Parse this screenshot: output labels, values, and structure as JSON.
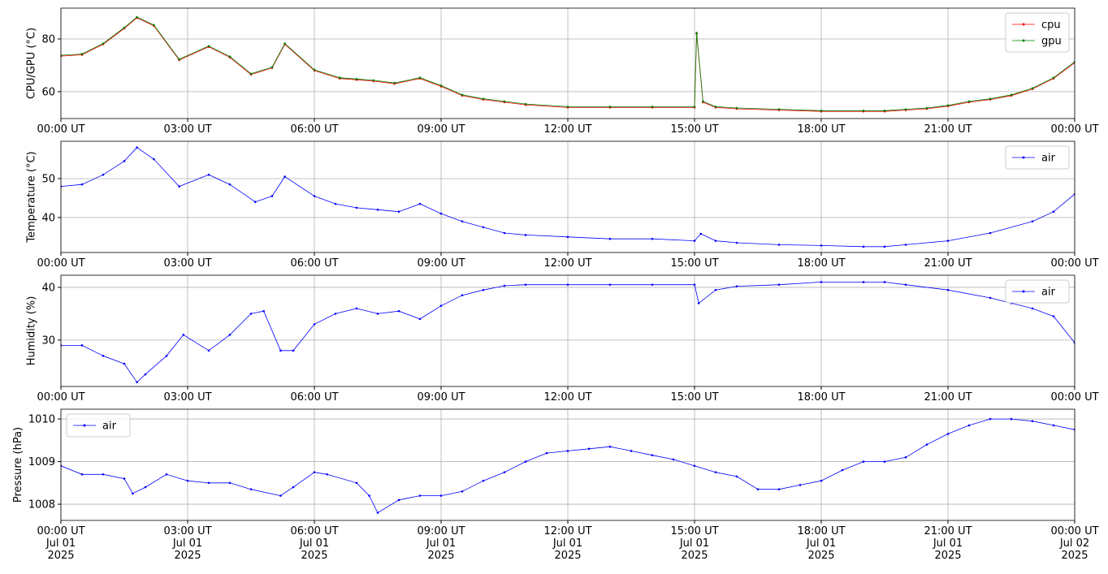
{
  "chart_data": [
    {
      "type": "line",
      "ylabel": "CPU/GPU (°C)",
      "legend": "upper right",
      "grid": true,
      "xlim": [
        0,
        24
      ],
      "ylim": [
        49.8,
        91.7
      ],
      "xticks": [
        {
          "value": 0,
          "label": "00:00 UT"
        },
        {
          "value": 3,
          "label": "03:00 UT"
        },
        {
          "value": 6,
          "label": "06:00 UT"
        },
        {
          "value": 9,
          "label": "09:00 UT"
        },
        {
          "value": 12,
          "label": "12:00 UT"
        },
        {
          "value": 15,
          "label": "15:00 UT"
        },
        {
          "value": 18,
          "label": "18:00 UT"
        },
        {
          "value": 21,
          "label": "21:00 UT"
        },
        {
          "value": 24,
          "label": "00:00 UT"
        }
      ],
      "yticks": [
        60,
        80
      ],
      "x": [
        0,
        0.5,
        1,
        1.5,
        1.8,
        2.2,
        2.8,
        3.5,
        4,
        4.5,
        5,
        5.3,
        6,
        6.6,
        7,
        7.4,
        7.9,
        8.5,
        9,
        9.5,
        10,
        10.5,
        11,
        12,
        13,
        14,
        15,
        15.05,
        15.2,
        15.5,
        16,
        17,
        18,
        19,
        19.5,
        20,
        20.5,
        21,
        21.5,
        22,
        22.5,
        23,
        23.5,
        24
      ],
      "series": [
        {
          "name": "cpu",
          "color": "#ff0000",
          "values": [
            73.5,
            74,
            78,
            84,
            88,
            85,
            72,
            77,
            73,
            66.5,
            69,
            78,
            68,
            65,
            64.5,
            64,
            63,
            65,
            62,
            58.5,
            57,
            56,
            55,
            54,
            54,
            54,
            54,
            82,
            56,
            54,
            53.5,
            53,
            52.5,
            52.5,
            52.5,
            53,
            53.5,
            54.5,
            56,
            57,
            58.5,
            61,
            65,
            71
          ]
        },
        {
          "name": "gpu",
          "color": "#008000",
          "values": [
            73.8,
            74.3,
            78.3,
            84.3,
            88.3,
            85.3,
            72.3,
            77.3,
            73.3,
            66.8,
            69.3,
            78.3,
            68.3,
            65.3,
            64.8,
            64.3,
            63.3,
            65.3,
            62.3,
            58.8,
            57.3,
            56.3,
            55.3,
            54.3,
            54.3,
            54.3,
            54.3,
            82.3,
            56.3,
            54.3,
            53.8,
            53.3,
            52.8,
            52.8,
            52.8,
            53.3,
            53.8,
            54.8,
            56.3,
            57.3,
            58.8,
            61.3,
            65.3,
            71.3
          ]
        }
      ]
    },
    {
      "type": "line",
      "ylabel": "Temperature (°C)",
      "legend": "upper right",
      "grid": true,
      "xlim": [
        0,
        24
      ],
      "ylim": [
        31,
        59.6
      ],
      "xticks": [
        {
          "value": 0,
          "label": "00:00 UT"
        },
        {
          "value": 3,
          "label": "03:00 UT"
        },
        {
          "value": 6,
          "label": "06:00 UT"
        },
        {
          "value": 9,
          "label": "09:00 UT"
        },
        {
          "value": 12,
          "label": "12:00 UT"
        },
        {
          "value": 15,
          "label": "15:00 UT"
        },
        {
          "value": 18,
          "label": "18:00 UT"
        },
        {
          "value": 21,
          "label": "21:00 UT"
        },
        {
          "value": 24,
          "label": "00:00 UT"
        }
      ],
      "yticks": [
        40,
        50
      ],
      "x": [
        0,
        0.5,
        1,
        1.5,
        1.8,
        2.2,
        2.8,
        3.5,
        4,
        4.6,
        5,
        5.3,
        6,
        6.5,
        7,
        7.5,
        8,
        8.5,
        9,
        9.5,
        10,
        10.5,
        11,
        12,
        13,
        14,
        15,
        15.15,
        15.5,
        16,
        17,
        18,
        19,
        19.5,
        20,
        21,
        22,
        23,
        23.5,
        24
      ],
      "series": [
        {
          "name": "air",
          "color": "#0000ff",
          "values": [
            48,
            48.5,
            51,
            54.5,
            58,
            55,
            48,
            51,
            48.5,
            44,
            45.5,
            50.5,
            45.5,
            43.5,
            42.5,
            42,
            41.5,
            43.5,
            41,
            39,
            37.5,
            36,
            35.5,
            35,
            34.5,
            34.5,
            34,
            35.8,
            34,
            33.5,
            33,
            32.8,
            32.5,
            32.5,
            33,
            34,
            36,
            39,
            41.5,
            46
          ]
        }
      ]
    },
    {
      "type": "line",
      "ylabel": "Humidity (%)",
      "legend": "upper right",
      "grid": true,
      "xlim": [
        0,
        24
      ],
      "ylim": [
        21.2,
        42.3
      ],
      "xticks": [
        {
          "value": 0,
          "label": "00:00 UT"
        },
        {
          "value": 3,
          "label": "03:00 UT"
        },
        {
          "value": 6,
          "label": "06:00 UT"
        },
        {
          "value": 9,
          "label": "09:00 UT"
        },
        {
          "value": 12,
          "label": "12:00 UT"
        },
        {
          "value": 15,
          "label": "15:00 UT"
        },
        {
          "value": 18,
          "label": "18:00 UT"
        },
        {
          "value": 21,
          "label": "21:00 UT"
        },
        {
          "value": 24,
          "label": "00:00 UT"
        }
      ],
      "yticks": [
        30,
        40
      ],
      "x": [
        0,
        0.5,
        1,
        1.5,
        1.8,
        2,
        2.5,
        2.9,
        3.5,
        4,
        4.5,
        4.8,
        5.2,
        5.5,
        6,
        6.5,
        7,
        7.5,
        8,
        8.5,
        9,
        9.5,
        10,
        10.5,
        11,
        12,
        13,
        14,
        15,
        15.1,
        15.5,
        16,
        17,
        18,
        19,
        19.5,
        20,
        21,
        22,
        22.5,
        23,
        23.5,
        24
      ],
      "series": [
        {
          "name": "air",
          "color": "#0000ff",
          "values": [
            29,
            29,
            27,
            25.5,
            22,
            23.5,
            27,
            31,
            28,
            31,
            35,
            35.5,
            28,
            28,
            33,
            35,
            36,
            35,
            35.5,
            34,
            36.5,
            38.5,
            39.5,
            40.3,
            40.5,
            40.5,
            40.5,
            40.5,
            40.5,
            37,
            39.5,
            40.2,
            40.5,
            41,
            41,
            41,
            40.5,
            39.5,
            38,
            37,
            36,
            34.5,
            29.5
          ]
        }
      ]
    },
    {
      "type": "line",
      "ylabel": "Pressure (hPa)",
      "legend": "upper left",
      "grid": true,
      "xlim": [
        0,
        24
      ],
      "ylim": [
        1007.62,
        1010.23
      ],
      "xticks": [
        {
          "value": 0,
          "label": "00:00 UT\nJul 01\n2025"
        },
        {
          "value": 3,
          "label": "03:00 UT\nJul 01\n2025"
        },
        {
          "value": 6,
          "label": "06:00 UT\nJul 01\n2025"
        },
        {
          "value": 9,
          "label": "09:00 UT\nJul 01\n2025"
        },
        {
          "value": 12,
          "label": "12:00 UT\nJul 01\n2025"
        },
        {
          "value": 15,
          "label": "15:00 UT\nJul 01\n2025"
        },
        {
          "value": 18,
          "label": "18:00 UT\nJul 01\n2025"
        },
        {
          "value": 21,
          "label": "21:00 UT\nJul 01\n2025"
        },
        {
          "value": 24,
          "label": "00:00 UT\nJul 02\n2025"
        }
      ],
      "yticks": [
        1008,
        1009,
        1010
      ],
      "x": [
        0,
        0.5,
        1,
        1.5,
        1.7,
        2,
        2.5,
        3,
        3.5,
        4,
        4.5,
        5.2,
        5.5,
        6,
        6.3,
        7,
        7.3,
        7.5,
        8,
        8.5,
        9,
        9.5,
        10,
        10.5,
        11,
        11.5,
        12,
        12.5,
        13,
        13.5,
        14,
        14.5,
        15,
        15.5,
        16,
        16.5,
        17,
        17.5,
        18,
        18.5,
        19,
        19.5,
        20,
        20.5,
        21,
        21.5,
        22,
        22.5,
        23,
        23.5,
        24
      ],
      "series": [
        {
          "name": "air",
          "color": "#0000ff",
          "values": [
            1008.9,
            1008.7,
            1008.7,
            1008.6,
            1008.25,
            1008.4,
            1008.7,
            1008.55,
            1008.5,
            1008.5,
            1008.35,
            1008.2,
            1008.4,
            1008.75,
            1008.7,
            1008.5,
            1008.2,
            1007.8,
            1008.1,
            1008.2,
            1008.2,
            1008.3,
            1008.55,
            1008.75,
            1009,
            1009.2,
            1009.25,
            1009.3,
            1009.35,
            1009.25,
            1009.15,
            1009.05,
            1008.9,
            1008.75,
            1008.65,
            1008.35,
            1008.35,
            1008.45,
            1008.55,
            1008.8,
            1009,
            1009,
            1009.1,
            1009.4,
            1009.65,
            1009.85,
            1010,
            1010,
            1009.95,
            1009.85,
            1009.75
          ]
        }
      ]
    }
  ]
}
